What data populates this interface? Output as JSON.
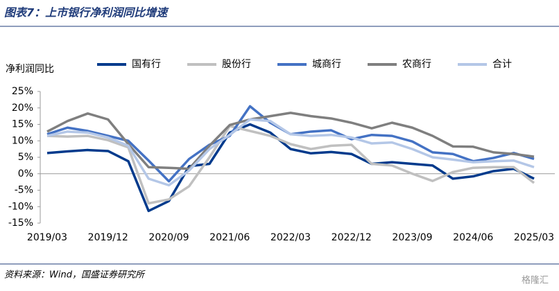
{
  "chart_data": {
    "type": "line",
    "title": "图表7：上市银行净利润同比增速",
    "y_label": "净利润同比",
    "source": "资料来源：Wind，国盛证券研究所",
    "watermark": "格隆汇",
    "categories": [
      "2019/03",
      null,
      null,
      "2019/12",
      null,
      null,
      "2020/09",
      null,
      null,
      "2021/06",
      null,
      null,
      "2022/03",
      null,
      null,
      "2022/12",
      null,
      null,
      "2023/09",
      null,
      null,
      "2024/06",
      null,
      null,
      "2025/03"
    ],
    "series": [
      {
        "name": "国有行",
        "color": "#003a8c",
        "values": [
          6.3,
          6.8,
          7.2,
          6.9,
          3.8,
          -11.3,
          -8.3,
          2.3,
          3.0,
          12.5,
          15.0,
          12.5,
          7.5,
          6.2,
          6.6,
          6.0,
          3.0,
          3.5,
          3.0,
          2.5,
          -1.5,
          -0.8,
          0.8,
          1.5,
          -1.5
        ]
      },
      {
        "name": "股份行",
        "color": "#c0c0c0",
        "values": [
          11.5,
          11.3,
          11.5,
          10.2,
          8.0,
          -9.0,
          -7.8,
          -3.8,
          5.0,
          14.5,
          13.0,
          11.5,
          9.0,
          7.5,
          8.5,
          8.8,
          3.0,
          2.5,
          0.0,
          -2.2,
          0.5,
          1.8,
          2.0,
          2.0,
          -2.8
        ]
      },
      {
        "name": "城商行",
        "color": "#4472c4",
        "values": [
          12.0,
          14.0,
          13.0,
          11.5,
          10.0,
          4.0,
          -2.3,
          4.5,
          8.8,
          11.5,
          20.5,
          15.5,
          12.0,
          12.8,
          13.2,
          10.5,
          11.8,
          11.5,
          9.8,
          6.5,
          6.0,
          3.8,
          4.8,
          6.3,
          4.5
        ]
      },
      {
        "name": "农商行",
        "color": "#7f7f7f",
        "values": [
          12.8,
          16.0,
          18.3,
          16.5,
          9.0,
          2.0,
          1.8,
          1.5,
          8.5,
          14.8,
          16.5,
          17.5,
          18.5,
          17.5,
          16.8,
          15.5,
          13.8,
          15.5,
          14.0,
          11.5,
          8.3,
          8.2,
          6.5,
          6.0,
          5.2
        ]
      },
      {
        "name": "合计",
        "color": "#b4c7e7",
        "values": [
          11.5,
          12.8,
          12.5,
          11.0,
          8.5,
          -1.5,
          -3.5,
          1.0,
          7.5,
          11.8,
          16.5,
          16.0,
          12.0,
          11.5,
          11.8,
          11.0,
          9.2,
          9.5,
          7.5,
          5.0,
          4.3,
          3.5,
          3.8,
          4.0,
          2.0
        ]
      }
    ],
    "ylim": [
      -15,
      25
    ],
    "yticks": [
      {
        "value": -15,
        "label": "-15%"
      },
      {
        "value": -10,
        "label": "-10%"
      },
      {
        "value": -5,
        "label": "-5%"
      },
      {
        "value": 0,
        "label": "0%"
      },
      {
        "value": 5,
        "label": "5%"
      },
      {
        "value": 10,
        "label": "10%"
      },
      {
        "value": 15,
        "label": "15%"
      },
      {
        "value": 20,
        "label": "20%"
      },
      {
        "value": 25,
        "label": "25%"
      }
    ],
    "grid": false
  }
}
